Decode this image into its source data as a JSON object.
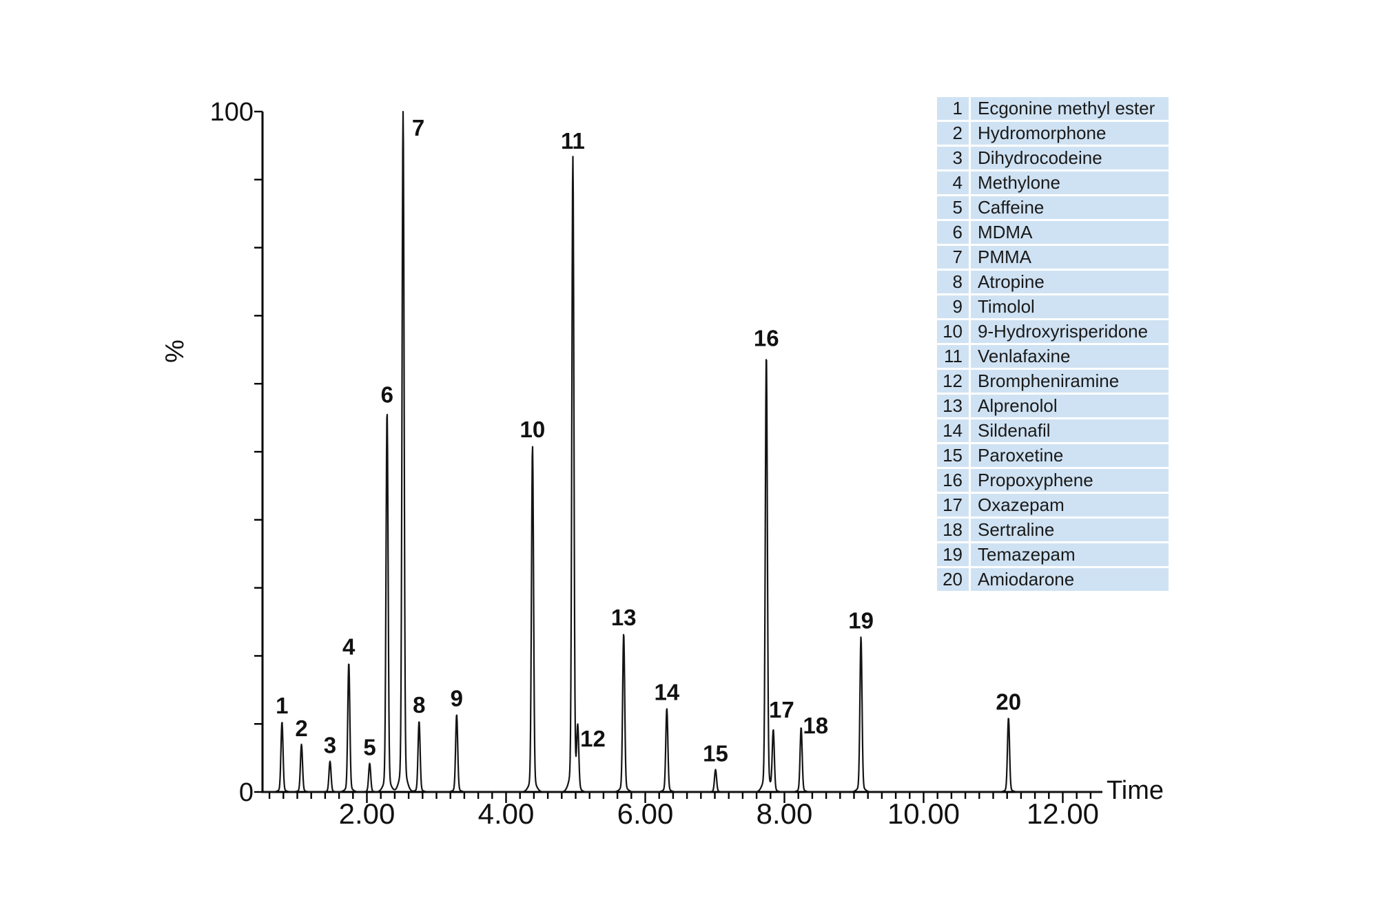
{
  "colors": {
    "trace": "#141414",
    "axis": "#000000",
    "text": "#111111",
    "legend_background": "#cfe2f3",
    "page_background": "#ffffff"
  },
  "chart_data": {
    "type": "line",
    "title": "",
    "xlabel": "Time",
    "ylabel": "%",
    "xlim": [
      0.5,
      12.57
    ],
    "ylim": [
      0,
      100
    ],
    "grid": false,
    "legend_position": "top-right",
    "x_axis": {
      "title": "Time",
      "minor_tick_step": 0.2,
      "minor_tick_range": [
        0.6,
        12.4
      ],
      "major_ticks": [
        {
          "value": 2,
          "label": "2.00"
        },
        {
          "value": 4,
          "label": "4.00"
        },
        {
          "value": 6,
          "label": "6.00"
        },
        {
          "value": 8,
          "label": "8.00"
        },
        {
          "value": 10,
          "label": "10.00"
        },
        {
          "value": 12,
          "label": "12.00"
        }
      ]
    },
    "y_axis": {
      "title": "%",
      "tick_step": 10,
      "bottom_label": "0",
      "top_label": "100"
    },
    "peaks": [
      {
        "num": 1,
        "name": "Ecgonine methyl ester",
        "time": 0.78,
        "height_pct": 10.3
      },
      {
        "num": 2,
        "name": "Hydromorphone",
        "time": 1.06,
        "height_pct": 7.0
      },
      {
        "num": 3,
        "name": "Dihydrocodeine",
        "time": 1.47,
        "height_pct": 4.5
      },
      {
        "num": 4,
        "name": "Methylone",
        "time": 1.74,
        "height_pct": 19.0
      },
      {
        "num": 5,
        "name": "Caffeine",
        "time": 2.04,
        "height_pct": 4.2
      },
      {
        "num": 6,
        "name": "MDMA",
        "time": 2.29,
        "height_pct": 56.0
      },
      {
        "num": 7,
        "name": "PMMA",
        "time": 2.52,
        "height_pct": 100.0,
        "label_dx": 22,
        "label_dy": 35
      },
      {
        "num": 8,
        "name": "Atropine",
        "time": 2.75,
        "height_pct": 10.4
      },
      {
        "num": 9,
        "name": "Timolol",
        "time": 3.29,
        "height_pct": 11.4
      },
      {
        "num": 10,
        "name": "9-Hydroxyrisperidone",
        "time": 4.38,
        "height_pct": 50.9
      },
      {
        "num": 11,
        "name": "Venlafaxine",
        "time": 4.96,
        "height_pct": 93.3
      },
      {
        "num": 12,
        "name": "Brompheniramine",
        "time": 5.03,
        "height_pct": 8.8,
        "label_dx": 22,
        "label_dy": 21
      },
      {
        "num": 13,
        "name": "Alprenolol",
        "time": 5.69,
        "height_pct": 23.3
      },
      {
        "num": 14,
        "name": "Sildenafil",
        "time": 6.31,
        "height_pct": 12.3
      },
      {
        "num": 15,
        "name": "Paroxetine",
        "time": 7.01,
        "height_pct": 3.3
      },
      {
        "num": 16,
        "name": "Propoxyphene",
        "time": 7.74,
        "height_pct": 64.3
      },
      {
        "num": 17,
        "name": "Oxazepam",
        "time": 7.84,
        "height_pct": 8.9,
        "label_dx": 12,
        "label_dy": -20
      },
      {
        "num": 18,
        "name": "Sertraline",
        "time": 8.24,
        "height_pct": 9.5,
        "label_dx": 21,
        "label_dy": 9
      },
      {
        "num": 19,
        "name": "Temazepam",
        "time": 9.1,
        "height_pct": 22.8
      },
      {
        "num": 20,
        "name": "Amiodarone",
        "time": 11.22,
        "height_pct": 10.9
      }
    ]
  },
  "legend": {
    "rows": [
      {
        "num": "1",
        "name": "Ecgonine methyl ester"
      },
      {
        "num": "2",
        "name": "Hydromorphone"
      },
      {
        "num": "3",
        "name": "Dihydrocodeine"
      },
      {
        "num": "4",
        "name": "Methylone"
      },
      {
        "num": "5",
        "name": "Caffeine"
      },
      {
        "num": "6",
        "name": "MDMA"
      },
      {
        "num": "7",
        "name": "PMMA"
      },
      {
        "num": "8",
        "name": "Atropine"
      },
      {
        "num": "9",
        "name": "Timolol"
      },
      {
        "num": "10",
        "name": "9-Hydroxyrisperidone"
      },
      {
        "num": "11",
        "name": "Venlafaxine"
      },
      {
        "num": "12",
        "name": "Brompheniramine"
      },
      {
        "num": "13",
        "name": "Alprenolol"
      },
      {
        "num": "14",
        "name": "Sildenafil"
      },
      {
        "num": "15",
        "name": "Paroxetine"
      },
      {
        "num": "16",
        "name": "Propoxyphene"
      },
      {
        "num": "17",
        "name": "Oxazepam"
      },
      {
        "num": "18",
        "name": "Sertraline"
      },
      {
        "num": "19",
        "name": "Temazepam"
      },
      {
        "num": "20",
        "name": "Amiodarone"
      }
    ]
  }
}
